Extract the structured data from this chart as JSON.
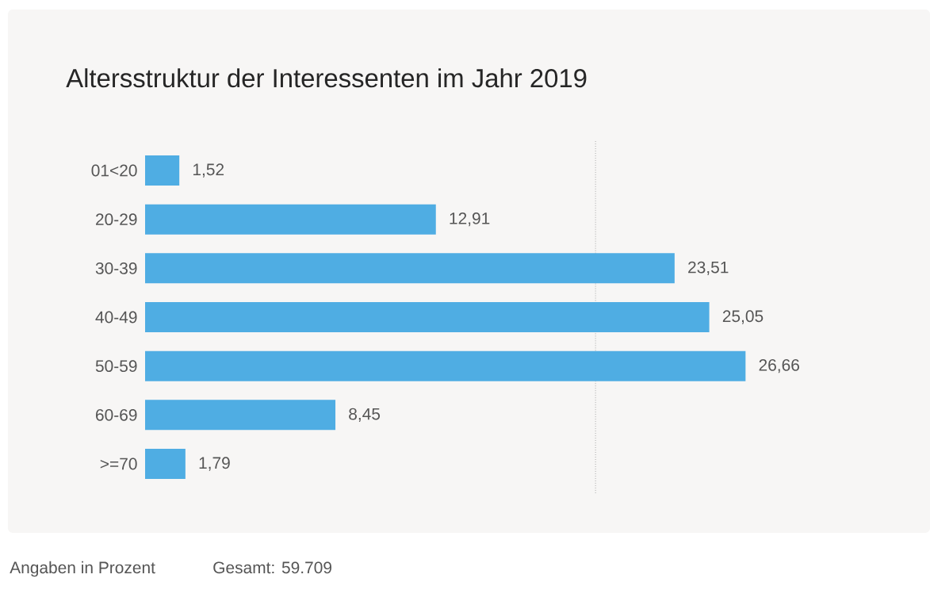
{
  "chart_data": {
    "type": "bar",
    "orientation": "horizontal",
    "title": "Altersstruktur der Interessenten im Jahr 2019",
    "categories": [
      "01<20",
      "20-29",
      "30-39",
      "40-49",
      "50-59",
      "60-69",
      ">=70"
    ],
    "values": [
      1.52,
      12.91,
      23.51,
      25.05,
      26.66,
      8.45,
      1.79
    ],
    "value_labels": [
      "1,52",
      "12,91",
      "23,51",
      "25,05",
      "26,66",
      "8,45",
      "1,79"
    ],
    "color": "#4fade3",
    "tick_labels": "y",
    "ref_lines": [
      {
        "axis": "x",
        "value": 20,
        "color": "#a8a8a8",
        "line_style": "dotted"
      }
    ],
    "annotations": [
      "Angaben in Prozent",
      "Gesamt: 59.709"
    ]
  }
}
